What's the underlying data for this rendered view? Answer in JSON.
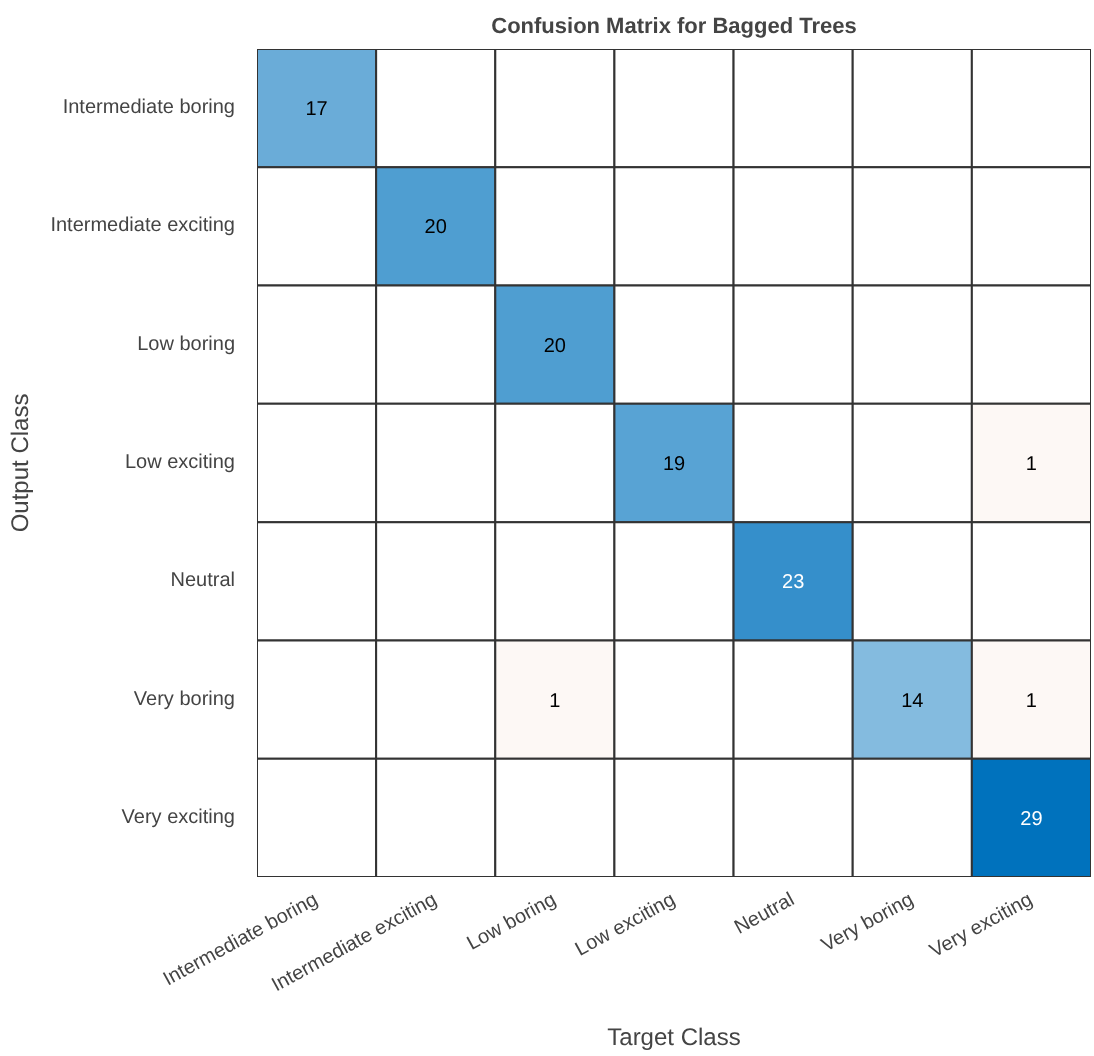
{
  "chart_data": {
    "type": "heatmap",
    "title": "Confusion Matrix for Bagged Trees",
    "xlabel": "Target Class",
    "ylabel": "Output Class",
    "data_labels": true,
    "categories": [
      "Intermediate boring",
      "Intermediate exciting",
      "Low boring",
      "Low exciting",
      "Neutral",
      "Very boring",
      "Very exciting"
    ],
    "y_categories": [
      "Intermediate boring",
      "Intermediate exciting",
      "Low boring",
      "Low exciting",
      "Neutral",
      "Very boring",
      "Very exciting"
    ],
    "cells": [
      [
        17,
        null,
        null,
        null,
        null,
        null,
        null
      ],
      [
        null,
        20,
        null,
        null,
        null,
        null,
        null
      ],
      [
        null,
        null,
        20,
        null,
        null,
        null,
        null
      ],
      [
        null,
        null,
        null,
        19,
        null,
        null,
        1
      ],
      [
        null,
        null,
        null,
        null,
        23,
        null,
        null
      ],
      [
        null,
        null,
        1,
        null,
        null,
        14,
        1
      ],
      [
        null,
        null,
        null,
        null,
        null,
        null,
        29
      ]
    ]
  }
}
